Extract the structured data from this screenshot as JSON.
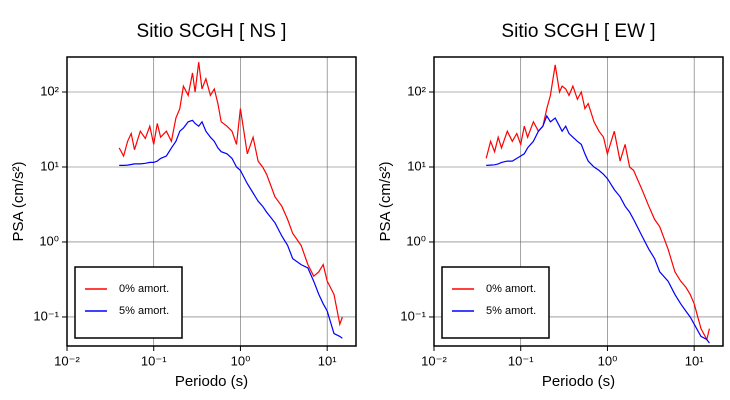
{
  "chart_data": [
    {
      "type": "line",
      "title": "Sitio SCGH [ NS ]",
      "xlabel": "Periodo (s)",
      "ylabel": "PSA (cm/s²)",
      "log_x": true,
      "log_y": true,
      "grid": true,
      "legend": "lower left",
      "xlim": [
        0.01,
        21.5
      ],
      "ylim": [
        0.041,
        293
      ],
      "xticks": [
        {
          "value": 0.01,
          "label": "10⁻²"
        },
        {
          "value": 0.1,
          "label": "10⁻¹"
        },
        {
          "value": 1,
          "label": "10⁰"
        },
        {
          "value": 10,
          "label": "10¹"
        }
      ],
      "yticks": [
        {
          "value": 0.1,
          "label": "10⁻¹"
        },
        {
          "value": 1,
          "label": "10⁰"
        },
        {
          "value": 10,
          "label": "10¹"
        },
        {
          "value": 100,
          "label": "10²"
        }
      ],
      "x": [
        0.04,
        0.045,
        0.05,
        0.055,
        0.06,
        0.07,
        0.08,
        0.09,
        0.1,
        0.11,
        0.12,
        0.14,
        0.16,
        0.18,
        0.2,
        0.22,
        0.25,
        0.28,
        0.3,
        0.33,
        0.36,
        0.4,
        0.45,
        0.5,
        0.55,
        0.6,
        0.7,
        0.8,
        0.9,
        1.0,
        1.2,
        1.4,
        1.6,
        1.8,
        2.0,
        2.5,
        3,
        3.5,
        4,
        5,
        6,
        7,
        8,
        9,
        10,
        12,
        14,
        15
      ],
      "series": [
        {
          "name": "0% amort.",
          "color": "#ff0000",
          "values": [
            18,
            14,
            22,
            28,
            17,
            30,
            24,
            35,
            20,
            38,
            25,
            30,
            22,
            45,
            60,
            120,
            90,
            180,
            100,
            250,
            110,
            150,
            90,
            110,
            70,
            40,
            35,
            30,
            20,
            60,
            15,
            25,
            12,
            10,
            8,
            4,
            3,
            2,
            1.3,
            0.9,
            0.5,
            0.35,
            0.4,
            0.5,
            0.3,
            0.2,
            0.08,
            0.1
          ]
        },
        {
          "name": "5% amort.",
          "color": "#0000ff",
          "values": [
            10.5,
            10.5,
            10.6,
            10.8,
            11,
            11,
            11.2,
            11.5,
            11.5,
            12,
            13,
            14,
            18,
            22,
            30,
            33,
            40,
            42,
            38,
            35,
            40,
            30,
            25,
            22,
            18,
            16,
            15,
            13,
            10,
            9,
            6,
            4.5,
            3.5,
            3,
            2.5,
            1.8,
            1.2,
            0.9,
            0.6,
            0.5,
            0.45,
            0.3,
            0.2,
            0.15,
            0.12,
            0.06,
            0.055,
            0.052
          ]
        }
      ]
    },
    {
      "type": "line",
      "title": "Sitio SCGH [ EW ]",
      "xlabel": "Periodo (s)",
      "ylabel": "PSA (cm/s²)",
      "log_x": true,
      "log_y": true,
      "grid": true,
      "legend": "lower left",
      "xlim": [
        0.01,
        21.5
      ],
      "ylim": [
        0.041,
        293
      ],
      "xticks": [
        {
          "value": 0.01,
          "label": "10⁻²"
        },
        {
          "value": 0.1,
          "label": "10⁻¹"
        },
        {
          "value": 1,
          "label": "10⁰"
        },
        {
          "value": 10,
          "label": "10¹"
        }
      ],
      "yticks": [
        {
          "value": 0.1,
          "label": "10⁻¹"
        },
        {
          "value": 1,
          "label": "10⁰"
        },
        {
          "value": 10,
          "label": "10¹"
        },
        {
          "value": 100,
          "label": "10²"
        }
      ],
      "x": [
        0.04,
        0.045,
        0.05,
        0.055,
        0.06,
        0.07,
        0.08,
        0.09,
        0.1,
        0.11,
        0.12,
        0.14,
        0.16,
        0.18,
        0.2,
        0.22,
        0.25,
        0.28,
        0.3,
        0.33,
        0.36,
        0.4,
        0.45,
        0.5,
        0.55,
        0.6,
        0.7,
        0.8,
        0.9,
        1.0,
        1.2,
        1.4,
        1.6,
        1.8,
        2.0,
        2.5,
        3,
        3.5,
        4,
        5,
        6,
        7,
        8,
        9,
        10,
        12,
        14,
        15
      ],
      "series": [
        {
          "name": "0% amort.",
          "color": "#ff0000",
          "values": [
            13,
            22,
            16,
            25,
            18,
            30,
            22,
            28,
            20,
            35,
            25,
            40,
            30,
            35,
            60,
            90,
            230,
            100,
            120,
            110,
            90,
            120,
            80,
            100,
            60,
            70,
            40,
            30,
            25,
            15,
            30,
            12,
            20,
            10,
            9,
            5,
            3,
            2,
            1.6,
            0.8,
            0.4,
            0.3,
            0.25,
            0.2,
            0.15,
            0.07,
            0.05,
            0.07
          ]
        },
        {
          "name": "5% amort.",
          "color": "#0000ff",
          "values": [
            10.5,
            10.6,
            10.7,
            11,
            11.5,
            12,
            12,
            13,
            14,
            15,
            18,
            22,
            30,
            35,
            48,
            40,
            45,
            35,
            30,
            35,
            28,
            25,
            22,
            20,
            15,
            12,
            10,
            9,
            8,
            7,
            5,
            4,
            3,
            2.5,
            2,
            1.2,
            0.8,
            0.6,
            0.4,
            0.3,
            0.2,
            0.15,
            0.12,
            0.1,
            0.08,
            0.055,
            0.05,
            0.045
          ]
        }
      ]
    }
  ]
}
